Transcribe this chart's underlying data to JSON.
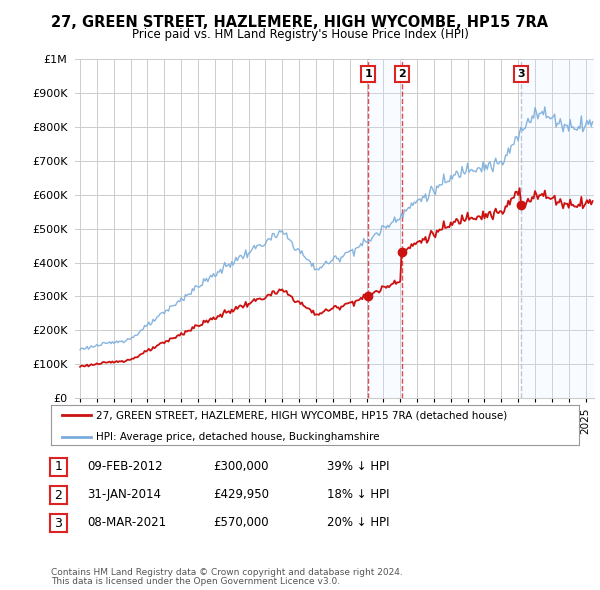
{
  "title": "27, GREEN STREET, HAZLEMERE, HIGH WYCOMBE, HP15 7RA",
  "subtitle": "Price paid vs. HM Land Registry's House Price Index (HPI)",
  "legend_line1": "27, GREEN STREET, HAZLEMERE, HIGH WYCOMBE, HP15 7RA (detached house)",
  "legend_line2": "HPI: Average price, detached house, Buckinghamshire",
  "footnote1": "Contains HM Land Registry data © Crown copyright and database right 2024.",
  "footnote2": "This data is licensed under the Open Government Licence v3.0.",
  "transactions": [
    {
      "num": 1,
      "date": "09-FEB-2012",
      "price": "£300,000",
      "pct": "39% ↓ HPI",
      "year": 2012.11
    },
    {
      "num": 2,
      "date": "31-JAN-2014",
      "price": "£429,950",
      "pct": "18% ↓ HPI",
      "year": 2014.08
    },
    {
      "num": 3,
      "date": "08-MAR-2021",
      "price": "£570,000",
      "pct": "20% ↓ HPI",
      "year": 2021.19
    }
  ],
  "hpi_color": "#7aaddc",
  "price_color": "#cc1111",
  "vline_color_red": "#dd2222",
  "vline_color_gray": "#aabbcc",
  "shade_color": "#ddeeff",
  "background_color": "#ffffff",
  "grid_color": "#cccccc",
  "ylim": [
    0,
    1000000
  ],
  "xlim_start": 1994.7,
  "xlim_end": 2025.5
}
